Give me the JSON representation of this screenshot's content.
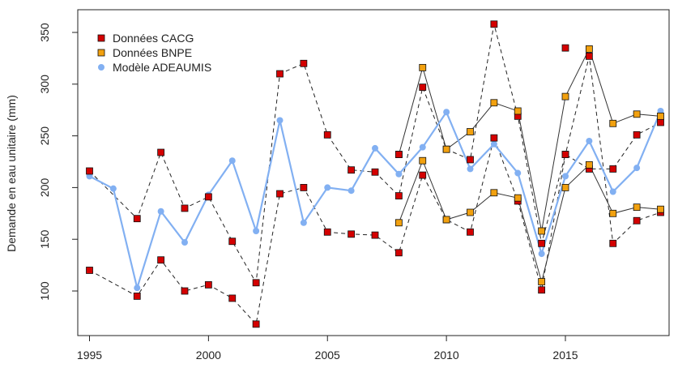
{
  "chart_data": {
    "type": "line",
    "title": "",
    "xlabel": "",
    "ylabel": "Demande en eau unitaire (mm)",
    "xlim": [
      1995,
      2019
    ],
    "ylim": [
      65,
      365
    ],
    "xticks": [
      1995,
      2000,
      2005,
      2010,
      2015
    ],
    "yticks": [
      100,
      150,
      200,
      250,
      300,
      350
    ],
    "legend": {
      "position": "top-left",
      "entries": [
        {
          "label": "Données CACG",
          "color": "#d40000",
          "marker": "square"
        },
        {
          "label": "Données BNPE",
          "color": "#f2a10f",
          "marker": "square"
        },
        {
          "label": "Modèle ADEAUMIS",
          "color": "#82b0f2",
          "marker": "circle"
        }
      ]
    },
    "series": [
      {
        "name": "Modèle ADEAUMIS",
        "style": "solid-blue-thick",
        "color": "#82b0f2",
        "marker": "circle",
        "x": [
          1995,
          1996,
          1997,
          1998,
          1999,
          2000,
          2001,
          2002,
          2003,
          2004,
          2005,
          2006,
          2007,
          2008,
          2009,
          2010,
          2011,
          2012,
          2013,
          2014,
          2015,
          2016,
          2017,
          2018,
          2019
        ],
        "values": [
          211,
          199,
          103,
          177,
          147,
          193,
          226,
          158,
          265,
          166,
          200,
          197,
          238,
          213,
          239,
          273,
          218,
          242,
          214,
          136,
          211,
          245,
          196,
          219,
          274
        ]
      },
      {
        "name": "Données CACG",
        "style": "dashed",
        "color": "#d40000",
        "marker": "square",
        "x": [
          1995,
          1997,
          1998,
          1999,
          2000,
          2001,
          2002,
          2003,
          2004,
          2005,
          2006,
          2007,
          2008,
          2009,
          2010,
          2011,
          2012,
          2013,
          2014,
          2015,
          2016,
          2017,
          2018,
          2019
        ],
        "values": [
          216,
          170,
          234,
          180,
          191,
          148,
          108,
          310,
          320,
          251,
          217,
          215,
          192,
          297,
          237,
          227,
          358,
          269,
          146,
          232,
          218,
          218,
          251,
          263
        ]
      },
      {
        "name": "Données CACG",
        "style": "dashed",
        "color": "#d40000",
        "marker": "square",
        "x": [
          1995,
          1997,
          1998,
          1999,
          2000,
          2001,
          2002,
          2003,
          2004,
          2005,
          2006,
          2007,
          2008,
          2009,
          2010,
          2011,
          2012,
          2013,
          2014,
          2015,
          2016,
          2017,
          2018,
          2019
        ],
        "values": [
          120,
          95,
          130,
          100,
          106,
          93,
          68,
          194,
          200,
          157,
          155,
          154,
          137,
          212,
          169,
          157,
          248,
          187,
          101,
          232,
          327,
          146,
          168,
          176
        ]
      },
      {
        "name": "Données BNPE",
        "style": "solid-dark",
        "color": "#f2a10f",
        "marker": "square",
        "x": [
          2008,
          2009,
          2010,
          2011,
          2012,
          2013,
          2014,
          2015,
          2016,
          2017,
          2018,
          2019
        ],
        "values": [
          232,
          316,
          237,
          254,
          282,
          274,
          158,
          288,
          334,
          262,
          271,
          269
        ]
      },
      {
        "name": "Données BNPE",
        "style": "solid-dark",
        "color": "#f2a10f",
        "marker": "square",
        "x": [
          2008,
          2009,
          2010,
          2011,
          2012,
          2013,
          2014,
          2015,
          2016,
          2017,
          2018,
          2019
        ],
        "values": [
          166,
          226,
          169,
          176,
          195,
          190,
          109,
          200,
          222,
          175,
          181,
          179
        ]
      }
    ],
    "extra_points": [
      {
        "series": "Données CACG",
        "x": 2008,
        "value": 232
      },
      {
        "series": "Données CACG",
        "x": 2015,
        "value": 335
      }
    ]
  }
}
